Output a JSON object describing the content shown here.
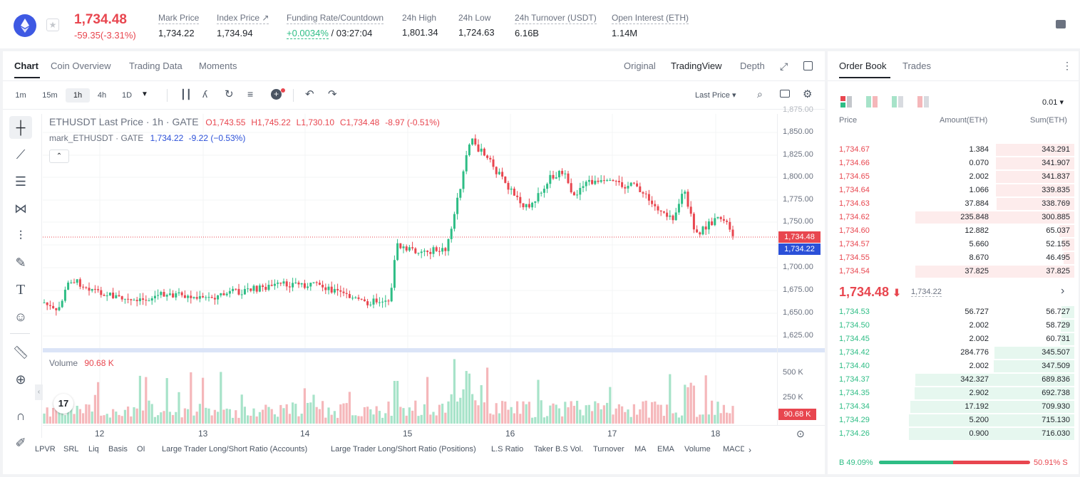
{
  "header": {
    "price": "1,734.48",
    "change": "-59.35(-3.31%)",
    "stats": [
      {
        "label": "Mark Price",
        "value": "1,734.22"
      },
      {
        "label": "Index Price ↗",
        "value": "1,734.94"
      },
      {
        "label": "Funding Rate/Countdown",
        "value_green": "+0.0034%",
        "value_rest": " / 03:27:04"
      },
      {
        "label": "24h High",
        "value": "1,801.34"
      },
      {
        "label": "24h Low",
        "value": "1,724.63"
      },
      {
        "label": "24h Turnover (USDT)",
        "value": "6.16B"
      },
      {
        "label": "Open Interest (ETH)",
        "value": "1.14M"
      }
    ]
  },
  "chart_tabs": [
    "Chart",
    "Coin Overview",
    "Trading Data",
    "Moments"
  ],
  "view_tabs": [
    "Original",
    "TradingView",
    "Depth"
  ],
  "timeframes": [
    "1m",
    "15m",
    "1h",
    "4h",
    "1D"
  ],
  "price_select": "Last Price",
  "legend": {
    "title": "ETHUSDT Last Price · 1h · GATE",
    "o": "O1,743.55",
    "h": "H1,745.22",
    "l": "L1,730.10",
    "c": "C1,734.48",
    "chg": "-8.97 (-0.51%)",
    "mark_title": "mark_ETHUSDT · GATE",
    "mark_val": "1,734.22",
    "mark_chg": "-9.22 (−0.53%)"
  },
  "volume": {
    "label": "Volume",
    "value": "90.68 K",
    "tag": "90.68 K",
    "ticks": [
      "500 K",
      "250 K"
    ]
  },
  "price_tags": {
    "last": "1,734.48",
    "mark": "1,734.22"
  },
  "y_ticks": [
    "1,875.00",
    "1,850.00",
    "1,825.00",
    "1,800.00",
    "1,775.00",
    "1,750.00",
    "1,700.00",
    "1,675.00",
    "1,650.00",
    "1,625.00"
  ],
  "x_ticks": [
    "12",
    "13",
    "14",
    "15",
    "16",
    "17",
    "18"
  ],
  "indicators": [
    "LPVR",
    "SRL",
    "Liq",
    "Basis",
    "OI",
    "Large Trader Long/Short Ratio (Accounts)",
    "Large Trader Long/Short Ratio (Positions)",
    "L.S Ratio",
    "Taker B.S Vol.",
    "Turnover",
    "MA",
    "EMA",
    "Volume",
    "MACD"
  ],
  "orderbook": {
    "tabs": [
      "Order Book",
      "Trades"
    ],
    "precision": "0.01",
    "headers": [
      "Price",
      "Amount(ETH)",
      "Sum(ETH)"
    ],
    "asks": [
      {
        "p": "1,734.67",
        "a": "1.384",
        "s": "343.291",
        "d": 0.325
      },
      {
        "p": "1,734.66",
        "a": "0.070",
        "s": "341.907",
        "d": 0.325
      },
      {
        "p": "1,734.65",
        "a": "2.002",
        "s": "341.837",
        "d": 0.325
      },
      {
        "p": "1,734.64",
        "a": "1.066",
        "s": "339.835",
        "d": 0.323
      },
      {
        "p": "1,734.63",
        "a": "37.884",
        "s": "338.769",
        "d": 0.322
      },
      {
        "p": "1,734.62",
        "a": "235.848",
        "s": "300.885",
        "d": 0.657
      },
      {
        "p": "1,734.60",
        "a": "12.882",
        "s": "65.037",
        "d": 0.062
      },
      {
        "p": "1,734.57",
        "a": "5.660",
        "s": "52.155",
        "d": 0.05
      },
      {
        "p": "1,734.55",
        "a": "8.670",
        "s": "46.495",
        "d": 0.044
      },
      {
        "p": "1,734.54",
        "a": "37.825",
        "s": "37.825",
        "d": 0.657
      }
    ],
    "mid_price": "1,734.48",
    "mid_mark": "1,734.22",
    "bids": [
      {
        "p": "1,734.53",
        "a": "56.727",
        "s": "56.727",
        "d": 0.054
      },
      {
        "p": "1,734.50",
        "a": "2.002",
        "s": "58.729",
        "d": 0.056
      },
      {
        "p": "1,734.45",
        "a": "2.002",
        "s": "60.731",
        "d": 0.058
      },
      {
        "p": "1,734.42",
        "a": "284.776",
        "s": "345.507",
        "d": 0.329
      },
      {
        "p": "1,734.40",
        "a": "2.002",
        "s": "347.509",
        "d": 0.331
      },
      {
        "p": "1,734.37",
        "a": "342.327",
        "s": "689.836",
        "d": 0.657
      },
      {
        "p": "1,734.35",
        "a": "2.902",
        "s": "692.738",
        "d": 0.66
      },
      {
        "p": "1,734.34",
        "a": "17.192",
        "s": "709.930",
        "d": 0.676
      },
      {
        "p": "1,734.29",
        "a": "5.200",
        "s": "715.130",
        "d": 0.681
      },
      {
        "p": "1,734.26",
        "a": "0.900",
        "s": "716.030",
        "d": 0.682
      }
    ],
    "buy_pct": "B 49.09%",
    "sell_pct": "50.91% S",
    "buy_ratio": 0.4909
  },
  "colors": {
    "up": "#2ebd85",
    "down": "#e8464f",
    "blue": "#2b50d8"
  }
}
